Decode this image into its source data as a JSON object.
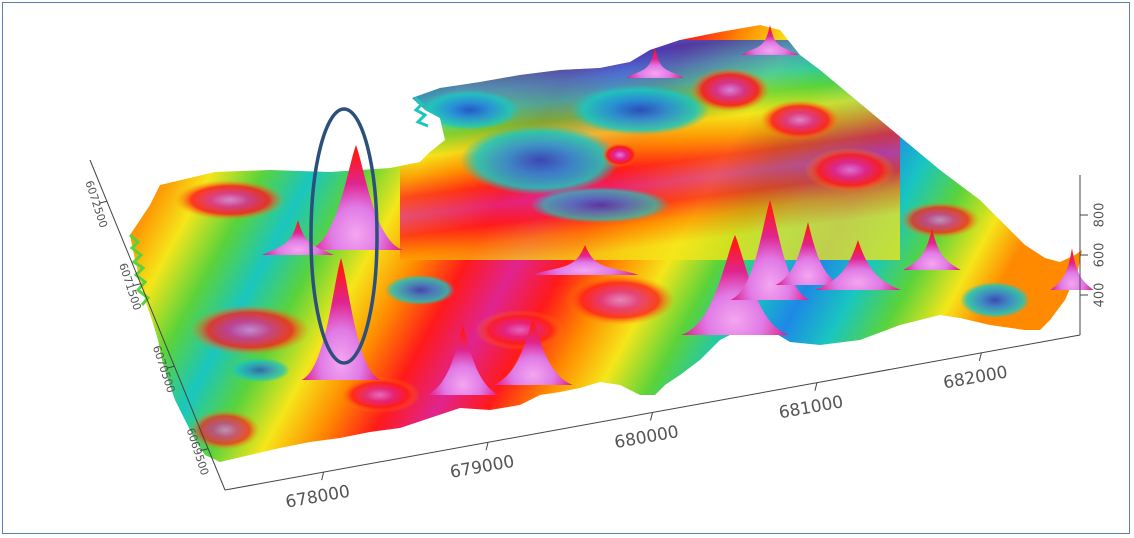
{
  "chart_data": {
    "type": "surface-3d",
    "title": "",
    "xlabel": "",
    "ylabel": "",
    "zlabel": "",
    "x_ticks": [
      "678000",
      "679000",
      "680000",
      "681000",
      "682000"
    ],
    "y_ticks": [
      "6072500",
      "6071500",
      "6070500",
      "6069500"
    ],
    "z_ticks": [
      "800",
      "600",
      "400"
    ],
    "x_range": [
      677400,
      682600
    ],
    "y_range": [
      6069000,
      6073000
    ],
    "z_range": [
      200,
      1000
    ],
    "colormap": [
      "#1a3fd1",
      "#1e88e5",
      "#19c6c0",
      "#5ad33a",
      "#f5e61a",
      "#ff8a00",
      "#ff1a1a",
      "#e0248f",
      "#e07ae6"
    ],
    "annotations": [
      {
        "type": "ellipse",
        "label": "",
        "color": "#2c4f7c",
        "x": 677600,
        "y": 6071000
      }
    ],
    "grid": false,
    "legend": "none"
  },
  "colors": {
    "frame_border": "#5b7fb0",
    "axis_line": "#444444",
    "highlight_ellipse": "#2c4f7c"
  }
}
